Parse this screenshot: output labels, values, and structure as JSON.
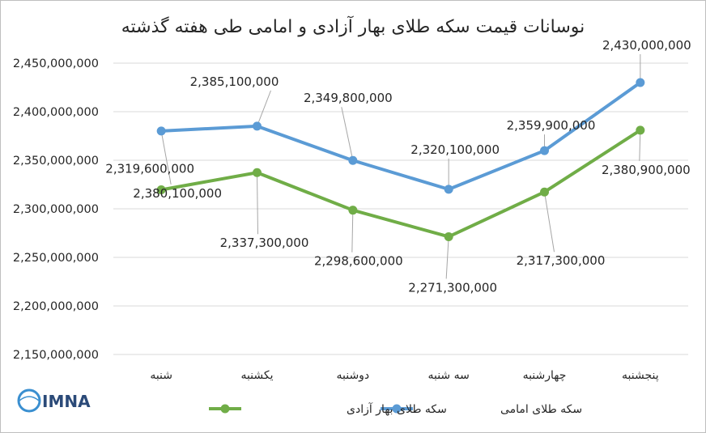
{
  "chart_data": {
    "type": "line",
    "title": "نوسانات قیمت سکه طلای بهار آزادی و امامی طی هفته گذشته",
    "categories": [
      "شنبه",
      "یکشنبه",
      "دوشنبه",
      "سه شنبه",
      "چهارشنبه",
      "پنجشنبه"
    ],
    "ylim": [
      2150000000,
      2450000000
    ],
    "yticks": [
      2150000000,
      2200000000,
      2250000000,
      2300000000,
      2350000000,
      2400000000,
      2450000000
    ],
    "ytick_labels": [
      "2,150,000,000",
      "2,200,000,000",
      "2,250,000,000",
      "2,300,000,000",
      "2,350,000,000",
      "2,400,000,000",
      "2,450,000,000"
    ],
    "grid": true,
    "legend_position": "bottom",
    "series": [
      {
        "name": "سکه طلای امامی",
        "color": "#5b9bd5",
        "values": [
          2380100000,
          2385100000,
          2349800000,
          2320100000,
          2359900000,
          2430000000
        ],
        "labels": [
          "2,380,100,000",
          "2,385,100,000",
          "2,349,800,000",
          "2,320,100,000",
          "2,359,900,000",
          "2,430,000,000"
        ]
      },
      {
        "name": "سکه طلای بهار آزادی",
        "color": "#70ad47",
        "values": [
          2319600000,
          2337300000,
          2298600000,
          2271300000,
          2317300000,
          2380900000
        ],
        "labels": [
          "2,319,600,000",
          "2,337,300,000",
          "2,298,600,000",
          "2,271,300,000",
          "2,317,300,000",
          "2,380,900,000"
        ]
      }
    ]
  },
  "logo": {
    "text": "IMNA",
    "colors": [
      "#2b4a78",
      "#3a8fd0"
    ]
  }
}
